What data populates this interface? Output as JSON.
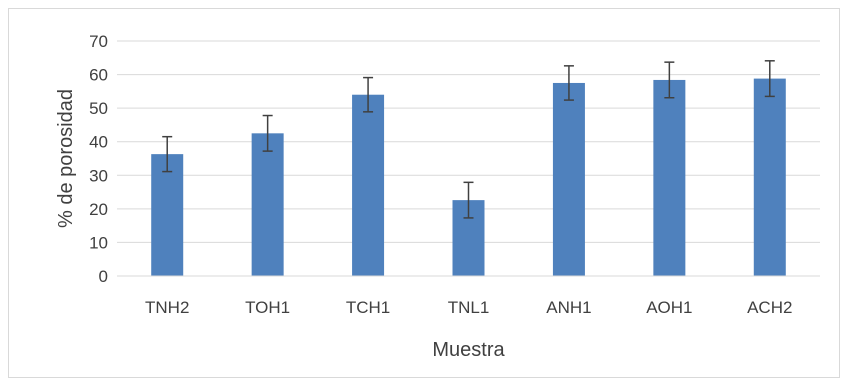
{
  "chart_data": {
    "type": "bar",
    "xlabel": "Muestra",
    "ylabel": "% de porosidad",
    "ylim": [
      0,
      70
    ],
    "yticks": [
      0,
      10,
      20,
      30,
      40,
      50,
      60,
      70
    ],
    "grid": true,
    "categories": [
      "TNH2",
      "TOH1",
      "TCH1",
      "TNL1",
      "ANH1",
      "AOH1",
      "ACH2"
    ],
    "values": [
      36.3,
      42.5,
      54.0,
      22.6,
      57.5,
      58.4,
      58.8
    ],
    "error": [
      5.2,
      5.3,
      5.1,
      5.3,
      5.1,
      5.3,
      5.3
    ],
    "colors": {
      "bar": "#4f81bd",
      "grid": "#d9d9d9",
      "error": "#404040"
    }
  }
}
